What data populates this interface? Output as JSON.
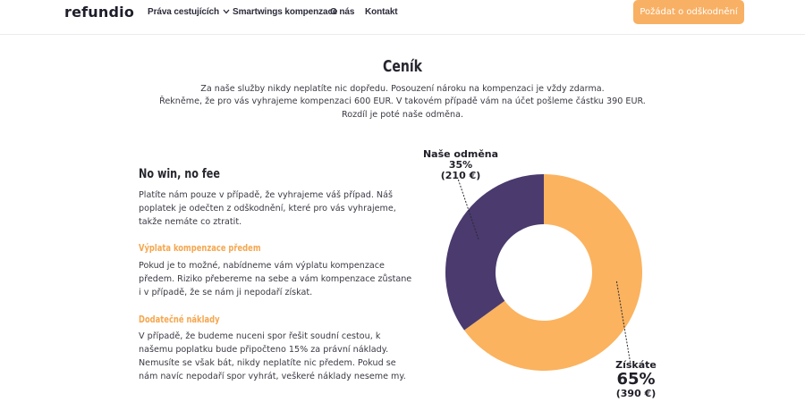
{
  "header": {
    "logo": "refundio",
    "nav": [
      {
        "label": "Práva cestujících"
      },
      {
        "label": "Smartwings kompenzace"
      },
      {
        "label": "O nás"
      },
      {
        "label": "Kontakt"
      }
    ],
    "cta_label": "Požádat o odškodnění"
  },
  "main": {
    "title": "Ceník",
    "intro_lines": [
      "Za naše služby nikdy neplatíte nic dopředu. Posouzení nároku na kompenzaci je vždy zdarma.",
      "Řekněme, že pro vás vyhrajeme kompenzaci 600 EUR. V takovém případě vám na účet pošleme částku 390 EUR.",
      "Rozdíl je poté naše odměna."
    ]
  },
  "sections": [
    {
      "heading": "No win, no fee",
      "lines": [
        "Platíte nám pouze v případě, že vyhrajeme váš případ. Náš",
        "poplatek je odečten z odškodnění, které pro vás vyhrajeme,",
        "takže nemáte co ztratit."
      ]
    },
    {
      "heading": "Výplata kompenzace předem",
      "lines": [
        "Pokud je to možné, nabídneme vám výplatu kompenzace",
        "předem. Riziko přebereme na sebe a vám kompenzace zůstane",
        "i v případě, že se nám ji nepodaří získat."
      ]
    },
    {
      "heading": "Dodatečné náklady",
      "lines": [
        "V případě, že budeme nuceni spor řešit soudní cestou, k",
        "našemu poplatku bude připočteno 15% za právní náklady.",
        "Nemusíte se však bát, nikdy neplatíte nic předem. Pokud se",
        "nám navíc nepodaří spor vyhrát, veškeré náklady neseme my."
      ]
    }
  ],
  "chart_data": {
    "type": "pie",
    "series": [
      {
        "name": "Získáte",
        "percent_label": "65%",
        "amount_label": "(390 €)",
        "value": 65,
        "color": "#fbb35f"
      },
      {
        "name": "Naše odměna",
        "percent_label": "35%",
        "amount_label": "(210 €)",
        "value": 35,
        "color": "#4a3a6e"
      }
    ]
  },
  "colors": {
    "accent": "#f8b064",
    "orange": "#fbb35f",
    "purple": "#4a3a6e"
  }
}
